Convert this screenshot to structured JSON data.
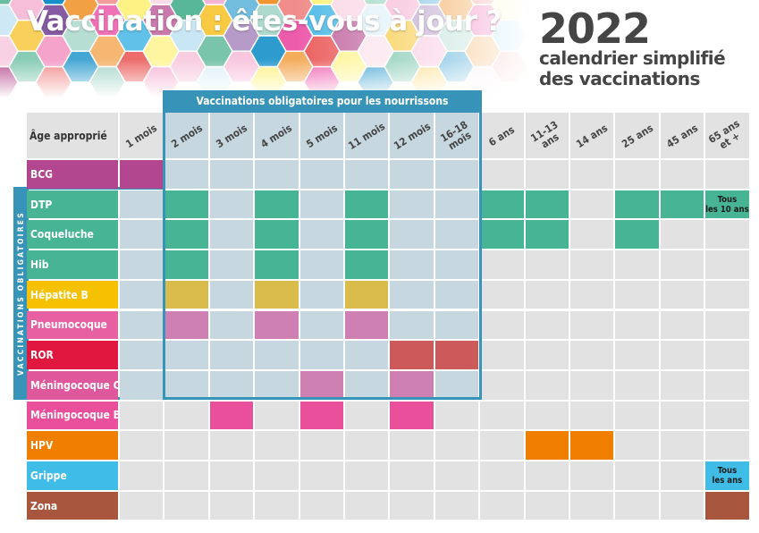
{
  "header": {
    "title": "Vaccination : êtes-vous à jour ?",
    "year": "2022",
    "subtitle_line1": "calendrier simplifié",
    "subtitle_line2": "des vaccinations"
  },
  "infant_box_label": "Vaccinations obligatoires pour les nourrissons",
  "mandatory_label": "VACCINATIONS OBLIGATOIRES",
  "age_column_header": "Âge approprié",
  "ages": [
    "1 mois",
    "2 mois",
    "3 mois",
    "4 mois",
    "5 mois",
    "11 mois",
    "12 mois",
    "16-18\nmois",
    "6 ans",
    "11-13\nans",
    "14 ans",
    "25 ans",
    "45 ans",
    "65 ans\net +"
  ],
  "colors": {
    "infant_box": "#3893b8",
    "empty_cell": "#e2e2e2",
    "infant_cell": "#c6d7e0",
    "header_cell": "#e2e2e2"
  },
  "vaccines": [
    {
      "name": "BCG",
      "label_color": "#b2478f",
      "fill_color": "#b2478f",
      "months": [
        0
      ],
      "note": null
    },
    {
      "name": "DTP",
      "label_color": "#47b593",
      "fill_color": "#47b593",
      "months": [
        1,
        3,
        5,
        8,
        9,
        11,
        12
      ],
      "note": "Tous\nles 10 ans"
    },
    {
      "name": "Coqueluche",
      "label_color": "#47b593",
      "fill_color": "#47b593",
      "months": [
        1,
        3,
        5,
        8,
        9,
        11
      ],
      "note": null
    },
    {
      "name": "Hib",
      "label_color": "#47b593",
      "fill_color": "#47b593",
      "months": [
        1,
        3,
        5
      ],
      "note": null
    },
    {
      "name": "Hépatite B",
      "label_color": "#f6c100",
      "fill_color": "#d9bc4b",
      "months": [
        1,
        3,
        5
      ],
      "note": null
    },
    {
      "name": "Pneumocoque",
      "label_color": "#e760a2",
      "fill_color": "#cd80b1",
      "months": [
        1,
        3,
        5
      ],
      "note": null
    },
    {
      "name": "ROR",
      "label_color": "#e0183f",
      "fill_color": "#cc5a5a",
      "months": [
        6,
        7
      ],
      "note": null
    },
    {
      "name": "Méningocoque C",
      "label_color": "#e0589c",
      "fill_color": "#cd80b1",
      "months": [
        4,
        6
      ],
      "note": null
    },
    {
      "name": "Méningocoque B",
      "label_color": "#ea4f9b",
      "fill_color": "#ea4f9b",
      "months": [
        2,
        4,
        6
      ],
      "note": null
    },
    {
      "name": "HPV",
      "label_color": "#f07f00",
      "fill_color": "#f07f00",
      "months": [
        9,
        10
      ],
      "note": null
    },
    {
      "name": "Grippe",
      "label_color": "#3fbde6",
      "fill_color": "#3fbde6",
      "months": [],
      "note": "Tous\nles ans"
    },
    {
      "name": "Zona",
      "label_color": "#a8573e",
      "fill_color": "#a8573e",
      "months": [
        13
      ],
      "note": null
    }
  ]
}
